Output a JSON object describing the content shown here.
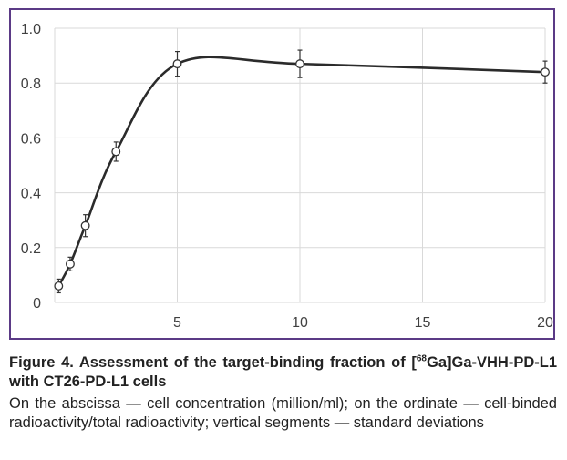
{
  "chart_data": {
    "type": "line",
    "title": "",
    "xlabel": "",
    "ylabel": "",
    "xlim": [
      0,
      20
    ],
    "ylim": [
      0,
      1.0
    ],
    "x_ticks": [
      5,
      10,
      15,
      20
    ],
    "y_ticks": [
      0,
      0.2,
      0.4,
      0.6,
      0.8,
      1.0
    ],
    "x_tick_labels": [
      "5",
      "10",
      "15",
      "20"
    ],
    "y_tick_labels": [
      "0",
      "0.2",
      "0.4",
      "0.6",
      "0.8",
      "1.0"
    ],
    "grid": "horizontal and vertical",
    "legend": "none",
    "line_color": "#2b2b2b",
    "series": [
      {
        "x": [
          0.16,
          0.63,
          1.25,
          2.5,
          5,
          10,
          20
        ],
        "y": [
          0.06,
          0.14,
          0.28,
          0.55,
          0.87,
          0.87,
          0.84
        ],
        "error": [
          0.025,
          0.025,
          0.04,
          0.035,
          0.045,
          0.05,
          0.04
        ]
      }
    ]
  },
  "caption": {
    "title_prefix": "Figure 4. Assessment of the target-binding fraction of [",
    "title_sup": "68",
    "title_suffix": "Ga]Ga-VHH-PD-L1 with CT26-PD-L1 cells",
    "body": "On the abscissa — cell concentration (million/ml); on the ordinate — cell-binded radioactivity/total radioactivity; vertical segments — standard deviations"
  }
}
